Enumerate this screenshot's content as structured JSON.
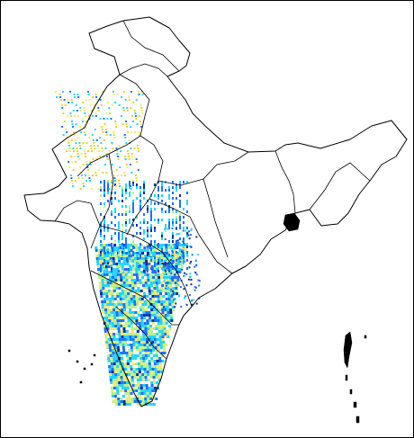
{
  "map": {
    "palette": {
      "very_low": "#f2cf2a",
      "low": "#f6e86b",
      "mid": "#b9f08a",
      "high": "#22d4ff",
      "very_high": "#1e6fff",
      "extreme": "#0b2f9a",
      "bg": "#ffffff",
      "border": "#000000"
    }
  }
}
